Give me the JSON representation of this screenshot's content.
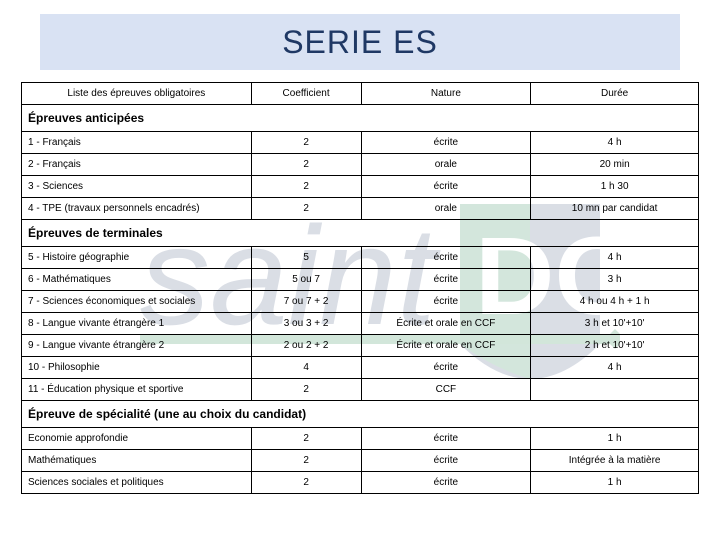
{
  "title": "SERIE ES",
  "columns": {
    "subject": "Liste des épreuves obligatoires",
    "coef": "Coefficient",
    "nature": "Nature",
    "duree": "Durée"
  },
  "sections": [
    {
      "label": "Épreuves anticipées",
      "rows": [
        {
          "subject": "1 - Français",
          "coef": "2",
          "nature": "écrite",
          "duree": "4 h"
        },
        {
          "subject": "2 - Français",
          "coef": "2",
          "nature": "orale",
          "duree": "20 min"
        },
        {
          "subject": "3 - Sciences",
          "coef": "2",
          "nature": "écrite",
          "duree": "1 h 30"
        },
        {
          "subject": "4 - TPE (travaux personnels encadrés)",
          "coef": "2",
          "nature": "orale",
          "duree": "10 mn par candidat"
        }
      ]
    },
    {
      "label": "Épreuves de terminales",
      "rows": [
        {
          "subject": "5 - Histoire géographie",
          "coef": "5",
          "nature": "écrite",
          "duree": "4 h"
        },
        {
          "subject": "6 - Mathématiques",
          "coef": "5 ou 7",
          "nature": "écrite",
          "duree": "3 h"
        },
        {
          "subject": "7 - Sciences économiques et sociales",
          "coef": "7 ou 7 + 2",
          "nature": "écrite",
          "duree": "4 h ou 4 h + 1 h"
        },
        {
          "subject": "8 - Langue vivante étrangère 1",
          "coef": "3 ou 3 + 2",
          "nature": "Écrite et orale en CCF",
          "duree": "3 h et 10'+10'"
        },
        {
          "subject": "9 - Langue vivante étrangère 2",
          "coef": "2 ou 2 + 2",
          "nature": "Écrite et orale en CCF",
          "duree": "2 h et 10'+10'"
        },
        {
          "subject": "10 - Philosophie",
          "coef": "4",
          "nature": "écrite",
          "duree": "4 h"
        },
        {
          "subject": "11 - Éducation physique et sportive",
          "coef": "2",
          "nature": "CCF",
          "duree": ""
        }
      ]
    },
    {
      "label": "Épreuve de spécialité (une au choix du candidat)",
      "rows": [
        {
          "subject": "Economie approfondie",
          "coef": "2",
          "nature": "écrite",
          "duree": "1 h"
        },
        {
          "subject": "Mathématiques",
          "coef": "2",
          "nature": "écrite",
          "duree": "Intégrée à la matière"
        },
        {
          "subject": "Sciences sociales et politiques",
          "coef": "2",
          "nature": "écrite",
          "duree": "1 h"
        }
      ]
    }
  ],
  "watermark": {
    "text_main_color": "#1f3864",
    "accent_color": "#0f7a3a",
    "opacity": 0.18
  },
  "colors": {
    "title_bg": "#d9e2f3",
    "title_text": "#1f3864",
    "border": "#000000",
    "text": "#000000"
  }
}
